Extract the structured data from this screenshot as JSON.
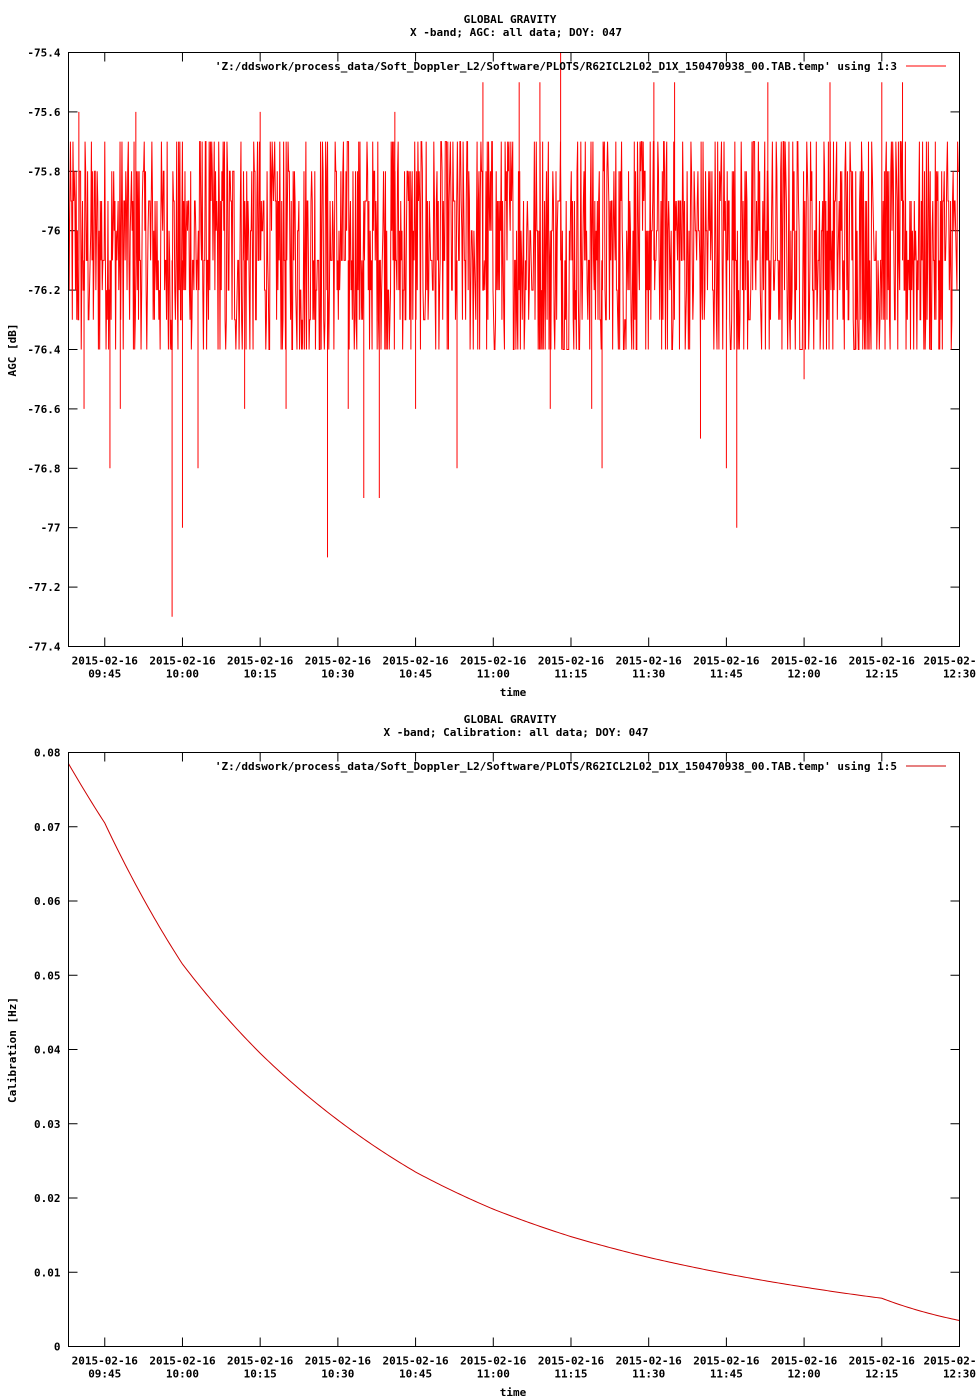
{
  "chart_data": [
    {
      "type": "line",
      "title": "GLOBAL GRAVITY",
      "subtitle": "X -band; AGC: all data; DOY: 047",
      "xlabel": "time",
      "ylabel": "AGC [dB]",
      "legend": "'Z:/ddswork/process_data/Soft_Doppler_L2/Software/PLOTS/R62ICL2L02_D1X_150470938_00.TAB.temp' using 1:3",
      "legend_position": "top-right",
      "ylim": [
        -77.4,
        -75.4
      ],
      "yticks": [
        "-75.4",
        "-75.6",
        "-75.8",
        "-76",
        "-76.2",
        "-76.4",
        "-76.6",
        "-76.8",
        "-77",
        "-77.2",
        "-77.4"
      ],
      "xrange_minutes": [
        "09:38",
        "12:30"
      ],
      "xticks": [
        {
          "date": "2015-02-16",
          "time": "09:45"
        },
        {
          "date": "2015-02-16",
          "time": "10:00"
        },
        {
          "date": "2015-02-16",
          "time": "10:15"
        },
        {
          "date": "2015-02-16",
          "time": "10:30"
        },
        {
          "date": "2015-02-16",
          "time": "10:45"
        },
        {
          "date": "2015-02-16",
          "time": "11:00"
        },
        {
          "date": "2015-02-16",
          "time": "11:15"
        },
        {
          "date": "2015-02-16",
          "time": "11:30"
        },
        {
          "date": "2015-02-16",
          "time": "11:45"
        },
        {
          "date": "2015-02-16",
          "time": "12:00"
        },
        {
          "date": "2015-02-16",
          "time": "12:15"
        },
        {
          "date": "2015-02-",
          "time": "12:30"
        }
      ],
      "series": [
        {
          "name": "'Z:/ddswork/process_data/Soft_Doppler_L2/Software/PLOTS/R62ICL2L02_D1X_150470938_00.TAB.temp' using 1:3",
          "color": "#ff0000",
          "baseline": -76.1,
          "x_start": "09:38",
          "x_end": "12:30",
          "typical_range": [
            -76.4,
            -75.7
          ],
          "extremes": [
            {
              "x": "09:38",
              "y": -75.4
            },
            {
              "x": "09:40",
              "y": -75.6
            },
            {
              "x": "09:41",
              "y": -76.6
            },
            {
              "x": "09:46",
              "y": -76.8
            },
            {
              "x": "09:48",
              "y": -76.6
            },
            {
              "x": "09:51",
              "y": -75.6
            },
            {
              "x": "09:58",
              "y": -77.3
            },
            {
              "x": "09:58",
              "y": -77.0
            },
            {
              "x": "10:00",
              "y": -77.0
            },
            {
              "x": "10:03",
              "y": -76.8
            },
            {
              "x": "10:12",
              "y": -76.6
            },
            {
              "x": "10:15",
              "y": -75.6
            },
            {
              "x": "10:20",
              "y": -76.6
            },
            {
              "x": "10:28",
              "y": -77.1
            },
            {
              "x": "10:32",
              "y": -76.6
            },
            {
              "x": "10:35",
              "y": -76.9
            },
            {
              "x": "10:38",
              "y": -76.9
            },
            {
              "x": "10:41",
              "y": -75.6
            },
            {
              "x": "10:45",
              "y": -76.6
            },
            {
              "x": "10:53",
              "y": -76.8
            },
            {
              "x": "10:58",
              "y": -75.5
            },
            {
              "x": "11:05",
              "y": -75.5
            },
            {
              "x": "11:09",
              "y": -75.5
            },
            {
              "x": "11:11",
              "y": -76.6
            },
            {
              "x": "11:13",
              "y": -75.4
            },
            {
              "x": "11:19",
              "y": -76.6
            },
            {
              "x": "11:21",
              "y": -76.8
            },
            {
              "x": "11:31",
              "y": -75.5
            },
            {
              "x": "11:35",
              "y": -75.5
            },
            {
              "x": "11:40",
              "y": -76.7
            },
            {
              "x": "11:45",
              "y": -76.8
            },
            {
              "x": "11:47",
              "y": -77.0
            },
            {
              "x": "11:53",
              "y": -75.5
            },
            {
              "x": "12:00",
              "y": -76.5
            },
            {
              "x": "12:05",
              "y": -75.5
            },
            {
              "x": "12:10",
              "y": -76.4
            },
            {
              "x": "12:15",
              "y": -75.5
            },
            {
              "x": "12:19",
              "y": -75.5
            },
            {
              "x": "12:26",
              "y": -76.4
            }
          ]
        }
      ],
      "grid": false
    },
    {
      "type": "line",
      "title": "GLOBAL GRAVITY",
      "subtitle": "X -band; Calibration: all data; DOY: 047",
      "xlabel": "time",
      "ylabel": "Calibration [Hz]",
      "legend": "'Z:/ddswork/process_data/Soft_Doppler_L2/Software/PLOTS/R62ICL2L02_D1X_150470938_00.TAB.temp' using 1:5",
      "legend_position": "top-right",
      "ylim": [
        0,
        0.08
      ],
      "yticks": [
        "0.08",
        "0.07",
        "0.06",
        "0.05",
        "0.04",
        "0.03",
        "0.02",
        "0.01",
        "0"
      ],
      "xrange_minutes": [
        "09:38",
        "12:30"
      ],
      "xticks": [
        {
          "date": "2015-02-16",
          "time": "09:45"
        },
        {
          "date": "2015-02-16",
          "time": "10:00"
        },
        {
          "date": "2015-02-16",
          "time": "10:15"
        },
        {
          "date": "2015-02-16",
          "time": "10:30"
        },
        {
          "date": "2015-02-16",
          "time": "10:45"
        },
        {
          "date": "2015-02-16",
          "time": "11:00"
        },
        {
          "date": "2015-02-16",
          "time": "11:15"
        },
        {
          "date": "2015-02-16",
          "time": "11:30"
        },
        {
          "date": "2015-02-16",
          "time": "11:45"
        },
        {
          "date": "2015-02-16",
          "time": "12:00"
        },
        {
          "date": "2015-02-16",
          "time": "12:15"
        },
        {
          "date": "2015-02-",
          "time": "12:30"
        }
      ],
      "series": [
        {
          "name": "'Z:/ddswork/process_data/Soft_Doppler_L2/Software/PLOTS/R62ICL2L02_D1X_150470938_00.TAB.temp' using 1:5",
          "color": "#cc0000",
          "points": [
            {
              "x": "09:38",
              "y": 0.0785
            },
            {
              "x": "09:45",
              "y": 0.0705
            },
            {
              "x": "10:00",
              "y": 0.0515
            },
            {
              "x": "10:15",
              "y": 0.0395
            },
            {
              "x": "10:30",
              "y": 0.0305
            },
            {
              "x": "10:45",
              "y": 0.0235
            },
            {
              "x": "11:00",
              "y": 0.0185
            },
            {
              "x": "11:15",
              "y": 0.0148
            },
            {
              "x": "11:30",
              "y": 0.012
            },
            {
              "x": "11:45",
              "y": 0.0098
            },
            {
              "x": "12:00",
              "y": 0.008
            },
            {
              "x": "12:15",
              "y": 0.0065
            },
            {
              "x": "12:30",
              "y": 0.0035
            }
          ]
        }
      ],
      "grid": false
    }
  ]
}
